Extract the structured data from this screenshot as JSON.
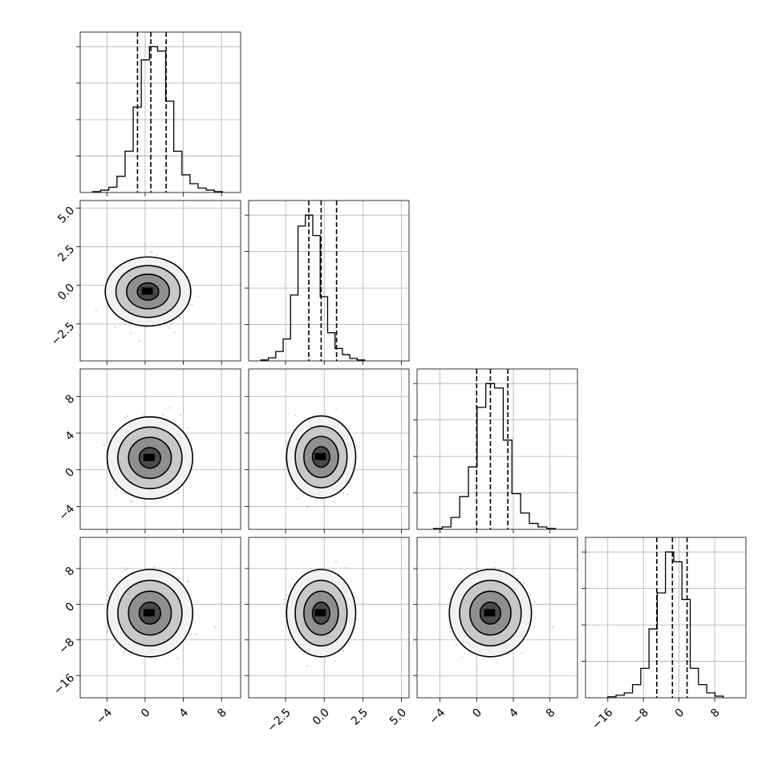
{
  "chart_data": {
    "type": "corner",
    "description_of_layout": "4x4 lower-triangular corner plot; diagonal = 1D histograms with 16/50/84 percent quantile lines; off-diagonal = 2D density with sigma contours",
    "variables": [
      {
        "index": 0,
        "range": [
          -6.8,
          10.0
        ],
        "ticks": [
          -4,
          0,
          4,
          8
        ],
        "tick_labels": [
          "−4",
          "0",
          "4",
          "8"
        ],
        "quantiles": [
          -0.8,
          0.6,
          2.2
        ],
        "hist_bins": {
          "start": -5.5,
          "width": 0.85,
          "counts": [
            3,
            8,
            18,
            55,
            140,
            290,
            450,
            495,
            480,
            310,
            140,
            60,
            30,
            15,
            8,
            3
          ]
        }
      },
      {
        "index": 1,
        "range": [
          -4.9,
          5.5
        ],
        "ticks": [
          -2.5,
          0.0,
          2.5,
          5.0
        ],
        "tick_labels": [
          "−2.5",
          "0.0",
          "2.5",
          "5.0"
        ],
        "quantiles": [
          -1.0,
          -0.2,
          0.8
        ],
        "hist_bins": {
          "start": -4.1,
          "width": 0.48,
          "counts": [
            3,
            10,
            30,
            70,
            210,
            430,
            465,
            400,
            205,
            90,
            40,
            20,
            8,
            3
          ]
        }
      },
      {
        "index": 2,
        "range": [
          -6.5,
          11.0
        ],
        "ticks": [
          -4,
          0,
          4,
          8
        ],
        "tick_labels": [
          "−4",
          "0",
          "4",
          "8"
        ],
        "quantiles": [
          0.0,
          1.5,
          3.4
        ],
        "hist_bins": {
          "start": -4.7,
          "width": 0.95,
          "counts": [
            3,
            8,
            40,
            110,
            210,
            410,
            490,
            475,
            300,
            120,
            55,
            20,
            8,
            3
          ]
        }
      },
      {
        "index": 3,
        "range": [
          -21,
          15
        ],
        "ticks": [
          -16,
          -8,
          0,
          8
        ],
        "tick_labels": [
          "−16",
          "−8",
          "0",
          "8"
        ],
        "quantiles": [
          -5.0,
          -1.5,
          1.8
        ],
        "hist_bins": {
          "start": -16,
          "width": 1.85,
          "counts": [
            3,
            8,
            15,
            40,
            90,
            210,
            320,
            445,
            415,
            300,
            90,
            40,
            15,
            5
          ]
        }
      }
    ],
    "pairs": [
      {
        "x": 0,
        "y": 1,
        "center": [
          0.3,
          -0.4
        ],
        "spread": [
          1.6,
          0.8
        ]
      },
      {
        "x": 0,
        "y": 2,
        "center": [
          0.5,
          1.3
        ],
        "spread": [
          1.6,
          1.6
        ]
      },
      {
        "x": 1,
        "y": 2,
        "center": [
          -0.2,
          1.4
        ],
        "spread": [
          0.8,
          1.6
        ]
      },
      {
        "x": 0,
        "y": 3,
        "center": [
          0.5,
          -2.0
        ],
        "spread": [
          1.6,
          3.5
        ]
      },
      {
        "x": 1,
        "y": 3,
        "center": [
          -0.2,
          -2.0
        ],
        "spread": [
          0.8,
          3.5
        ]
      },
      {
        "x": 2,
        "y": 3,
        "center": [
          1.5,
          -2.0
        ],
        "spread": [
          1.6,
          3.5
        ]
      }
    ],
    "contour_levels_sigma": [
      0.5,
      1.0,
      1.5,
      2.0
    ],
    "grid": true,
    "legend": "none",
    "title": "",
    "axis_labels": []
  }
}
